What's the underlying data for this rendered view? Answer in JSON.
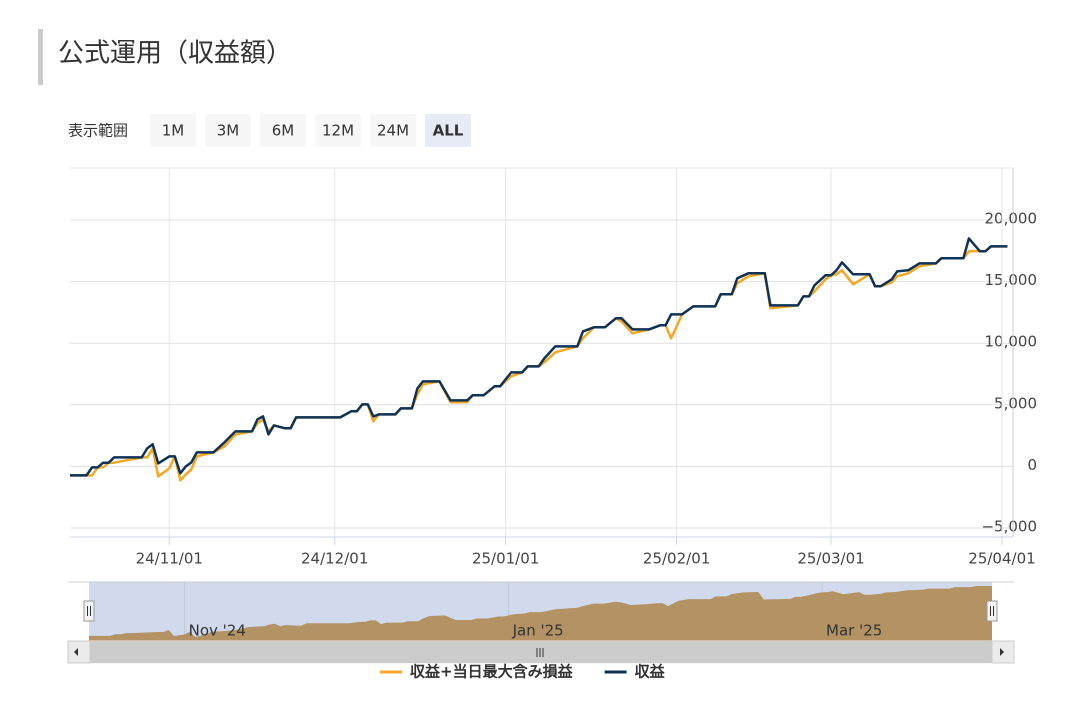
{
  "chart_data": {
    "type": "line",
    "title": "公式運用（収益額）",
    "range_selector": {
      "label": "表示範囲",
      "buttons": [
        {
          "text": "1M"
        },
        {
          "text": "3M"
        },
        {
          "text": "6M",
          "disabled": true
        },
        {
          "text": "12M",
          "disabled": true
        },
        {
          "text": "24M",
          "disabled": true
        },
        {
          "text": "ALL",
          "selected": true
        }
      ]
    },
    "x": [
      "2024-10-14",
      "2024-10-17",
      "2024-10-18",
      "2024-10-19",
      "2024-10-20",
      "2024-10-21",
      "2024-10-22",
      "2024-10-27",
      "2024-10-28",
      "2024-10-29",
      "2024-10-30",
      "2024-11-01",
      "2024-11-02",
      "2024-11-03",
      "2024-11-04",
      "2024-11-05",
      "2024-11-06",
      "2024-11-09",
      "2024-11-11",
      "2024-11-13",
      "2024-11-16",
      "2024-11-17",
      "2024-11-18",
      "2024-11-19",
      "2024-11-20",
      "2024-11-22",
      "2024-11-23",
      "2024-11-24",
      "2024-12-02",
      "2024-12-04",
      "2024-12-05",
      "2024-12-06",
      "2024-12-07",
      "2024-12-08",
      "2024-12-09",
      "2024-12-12",
      "2024-12-13",
      "2024-12-15",
      "2024-12-16",
      "2024-12-17",
      "2024-12-20",
      "2024-12-22",
      "2024-12-25",
      "2024-12-26",
      "2024-12-28",
      "2024-12-30",
      "2024-12-31",
      "2025-01-02",
      "2025-01-04",
      "2025-01-05",
      "2025-01-07",
      "2025-01-08",
      "2025-01-10",
      "2025-01-14",
      "2025-01-15",
      "2025-01-17",
      "2025-01-19",
      "2025-01-21",
      "2025-01-22",
      "2025-01-24",
      "2025-01-27",
      "2025-01-29",
      "2025-01-30",
      "2025-01-31",
      "2025-02-02",
      "2025-02-04",
      "2025-02-08",
      "2025-02-09",
      "2025-02-11",
      "2025-02-12",
      "2025-02-14",
      "2025-02-17",
      "2025-02-18",
      "2025-02-23",
      "2025-02-24",
      "2025-02-25",
      "2025-02-26",
      "2025-02-28",
      "2025-03-01",
      "2025-03-02",
      "2025-03-03",
      "2025-03-05",
      "2025-03-08",
      "2025-03-09",
      "2025-03-10",
      "2025-03-12",
      "2025-03-13",
      "2025-03-15",
      "2025-03-17",
      "2025-03-20",
      "2025-03-21",
      "2025-03-25",
      "2025-03-26",
      "2025-03-28",
      "2025-03-29",
      "2025-03-30",
      "2025-04-02"
    ],
    "series": [
      {
        "name": "収益+当日最大含み損益",
        "color": "#f5a623",
        "values": [
          -730,
          -730,
          -730,
          -80,
          -80,
          300,
          300,
          730,
          730,
          1460,
          -810,
          -160,
          810,
          -1140,
          -650,
          -240,
          810,
          1140,
          1620,
          2600,
          2840,
          3500,
          3820,
          2840,
          3330,
          3090,
          3090,
          3980,
          3980,
          4470,
          4470,
          5030,
          5030,
          3660,
          4220,
          4220,
          4710,
          4710,
          5850,
          6660,
          6900,
          5200,
          5200,
          5770,
          5770,
          6500,
          6500,
          7310,
          7630,
          8120,
          8120,
          8450,
          9260,
          9740,
          10400,
          11290,
          11290,
          12020,
          11770,
          10800,
          11120,
          11450,
          11450,
          10390,
          12340,
          12990,
          12990,
          13970,
          13970,
          14860,
          15430,
          15670,
          12830,
          13070,
          13800,
          13800,
          14210,
          15180,
          15510,
          15590,
          15920,
          14780,
          15590,
          14620,
          14620,
          14940,
          15430,
          15670,
          16240,
          16480,
          16890,
          16890,
          17460,
          17460,
          17460,
          17860,
          17860
        ]
      },
      {
        "name": "収益",
        "color": "#0d3358",
        "values": [
          -730,
          -730,
          -80,
          -80,
          300,
          300,
          730,
          730,
          1460,
          1790,
          240,
          810,
          810,
          -570,
          0,
          320,
          1140,
          1140,
          1950,
          2840,
          2840,
          3820,
          4060,
          2600,
          3330,
          3090,
          3090,
          3980,
          3980,
          4470,
          4470,
          5030,
          5030,
          4060,
          4220,
          4220,
          4710,
          4710,
          6330,
          6900,
          6900,
          5360,
          5360,
          5770,
          5770,
          6500,
          6500,
          7630,
          7630,
          8120,
          8120,
          8770,
          9740,
          9740,
          10960,
          11290,
          11290,
          12020,
          12020,
          11120,
          11120,
          11450,
          11450,
          12340,
          12340,
          12990,
          12990,
          13970,
          13970,
          15270,
          15670,
          15670,
          13070,
          13070,
          13800,
          13800,
          14700,
          15510,
          15510,
          15920,
          16560,
          15590,
          15590,
          14620,
          14620,
          15180,
          15830,
          15920,
          16480,
          16480,
          16890,
          16890,
          18510,
          17460,
          17460,
          17860,
          17860
        ]
      }
    ],
    "xlim": [
      "2024-10-14",
      "2025-04-03"
    ],
    "xticks": [
      {
        "value": "2024-11-01",
        "label": "24/11/01"
      },
      {
        "value": "2024-12-01",
        "label": "24/12/01"
      },
      {
        "value": "2025-01-01",
        "label": "25/01/01"
      },
      {
        "value": "2025-02-01",
        "label": "25/02/01"
      },
      {
        "value": "2025-03-01",
        "label": "25/03/01"
      },
      {
        "value": "2025-04-01",
        "label": "25/04/01"
      }
    ],
    "ylim": [
      -5730,
      24220
    ],
    "yticks": [
      {
        "value": -5000,
        "label": "−5,000"
      },
      0,
      {
        "value": 5000,
        "label": "5,000"
      },
      {
        "value": 10000,
        "label": "10,000"
      },
      {
        "value": 15000,
        "label": "15,000"
      },
      {
        "value": 20000,
        "label": "20,000"
      }
    ],
    "grid": true,
    "legend": "bottom",
    "navigator": {
      "color": "#d49a3a",
      "xticks": [
        {
          "value": "2024-11-01",
          "label": "Nov '24"
        },
        {
          "value": "2025-01-01",
          "label": "Jan '25"
        },
        {
          "value": "2025-03-01",
          "label": "Mar '25"
        }
      ]
    }
  }
}
